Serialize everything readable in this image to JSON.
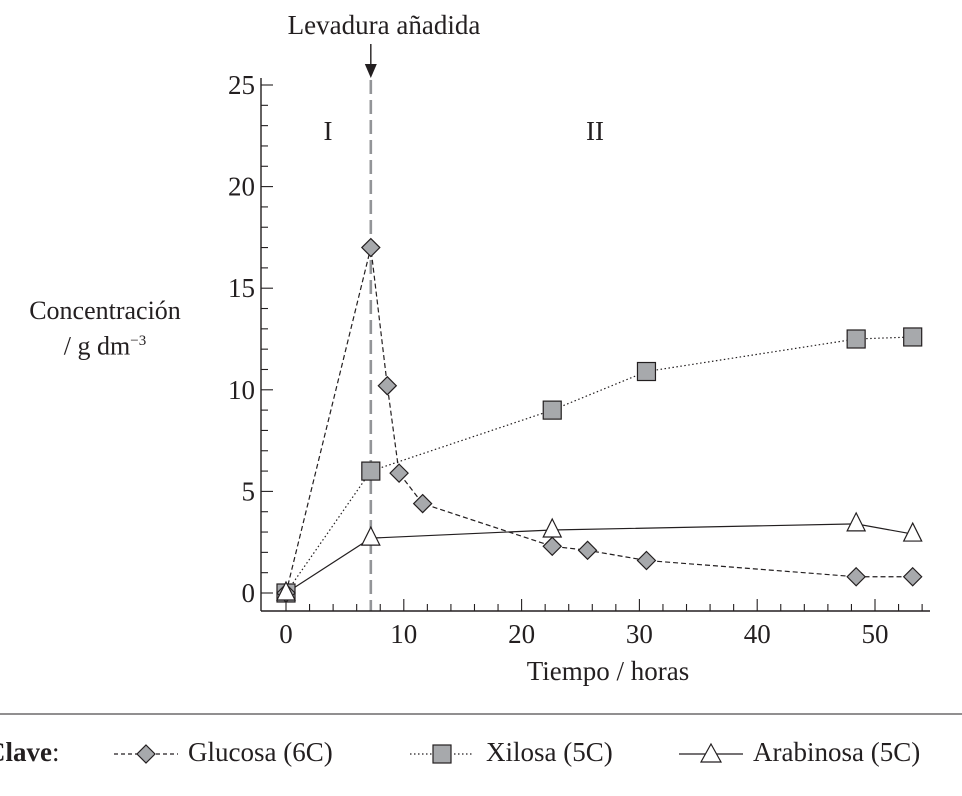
{
  "annotation": {
    "label": "Levadura añadida",
    "x": 7.2
  },
  "regions": [
    "I",
    "II"
  ],
  "y_axis_label": {
    "line1": "Concentración",
    "line2": "/ g dm",
    "unit_sup": "−3"
  },
  "key": {
    "heading": "Clave",
    "heading_suffix": ":",
    "items": [
      "Glucosa (6C)",
      "Xilosa (5C)",
      "Arabinosa (5C)"
    ]
  },
  "colors": {
    "marker_fill": "#a7a9ac",
    "ink": "#231f20",
    "dashed_line": "#939598"
  },
  "chart_data": {
    "type": "line",
    "xlabel": "Tiempo / horas",
    "ylabel": "Concentración / g dm−3",
    "xlim": [
      -0.5,
      55
    ],
    "ylim": [
      0,
      25
    ],
    "xticks": [
      0,
      10,
      20,
      30,
      40,
      50
    ],
    "yticks": [
      0,
      5,
      10,
      15,
      20,
      25
    ],
    "grid": false,
    "legend": "bottom",
    "series": [
      {
        "name": "Glucosa (6C)",
        "marker": "diamond",
        "line": "dashed",
        "x": [
          0,
          7.2,
          8.6,
          9.6,
          11.6,
          22.6,
          25.6,
          30.6,
          48.4,
          53.2
        ],
        "y": [
          0,
          17.0,
          10.2,
          5.9,
          4.4,
          2.3,
          2.1,
          1.6,
          0.8,
          0.8
        ]
      },
      {
        "name": "Xilosa (5C)",
        "marker": "square",
        "line": "dotted",
        "x": [
          0,
          7.2,
          22.6,
          30.6,
          48.4,
          53.2
        ],
        "y": [
          0,
          6.0,
          9.0,
          10.9,
          12.5,
          12.6
        ]
      },
      {
        "name": "Arabinosa (5C)",
        "marker": "triangle",
        "line": "solid",
        "x": [
          0,
          7.2,
          22.6,
          48.4,
          53.2
        ],
        "y": [
          0,
          2.7,
          3.1,
          3.4,
          2.9
        ]
      }
    ]
  }
}
